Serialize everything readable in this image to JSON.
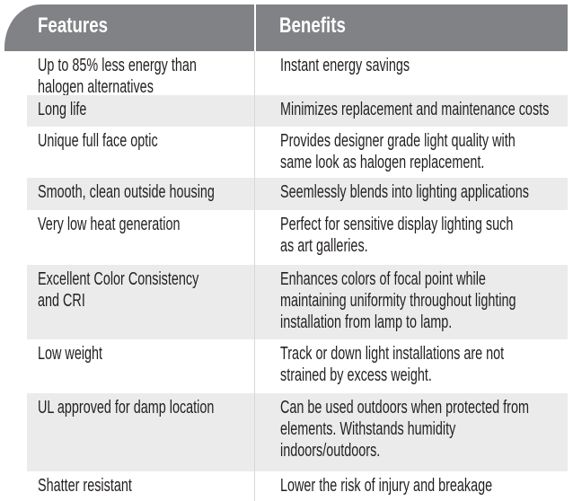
{
  "table": {
    "headers": [
      "Features",
      "Benefits"
    ],
    "rows": [
      {
        "feature": "Up to 85% less energy than\nhalogen alternatives",
        "benefit": "Instant energy savings"
      },
      {
        "feature": "Long life",
        "benefit": "Minimizes replacement and maintenance costs"
      },
      {
        "feature": "Unique full face optic",
        "benefit": "Provides designer grade light quality with\nsame look as halogen replacement."
      },
      {
        "feature": "Smooth, clean outside housing",
        "benefit": "Seemlessly blends into lighting applications"
      },
      {
        "feature": "Very low heat generation",
        "benefit": "Perfect for sensitive display lighting such\nas art galleries."
      },
      {
        "feature": "Excellent Color Consistency\nand CRI",
        "benefit": "Enhances colors of focal point while\nmaintaining uniformity throughout lighting\ninstallation from lamp to lamp."
      },
      {
        "feature": "Low weight",
        "benefit": "Track or down light installations are not\nstrained by excess weight."
      },
      {
        "feature": "UL approved for damp location",
        "benefit": "Can be used outdoors when protected from\nelements. Withstands humidity\nindoors/outdoors."
      },
      {
        "feature": "Shatter resistant",
        "benefit": "Lower the risk of injury and breakage"
      }
    ]
  },
  "colors": {
    "header": "#808285",
    "alt_row": "#ebebec",
    "text": "#231f20"
  }
}
